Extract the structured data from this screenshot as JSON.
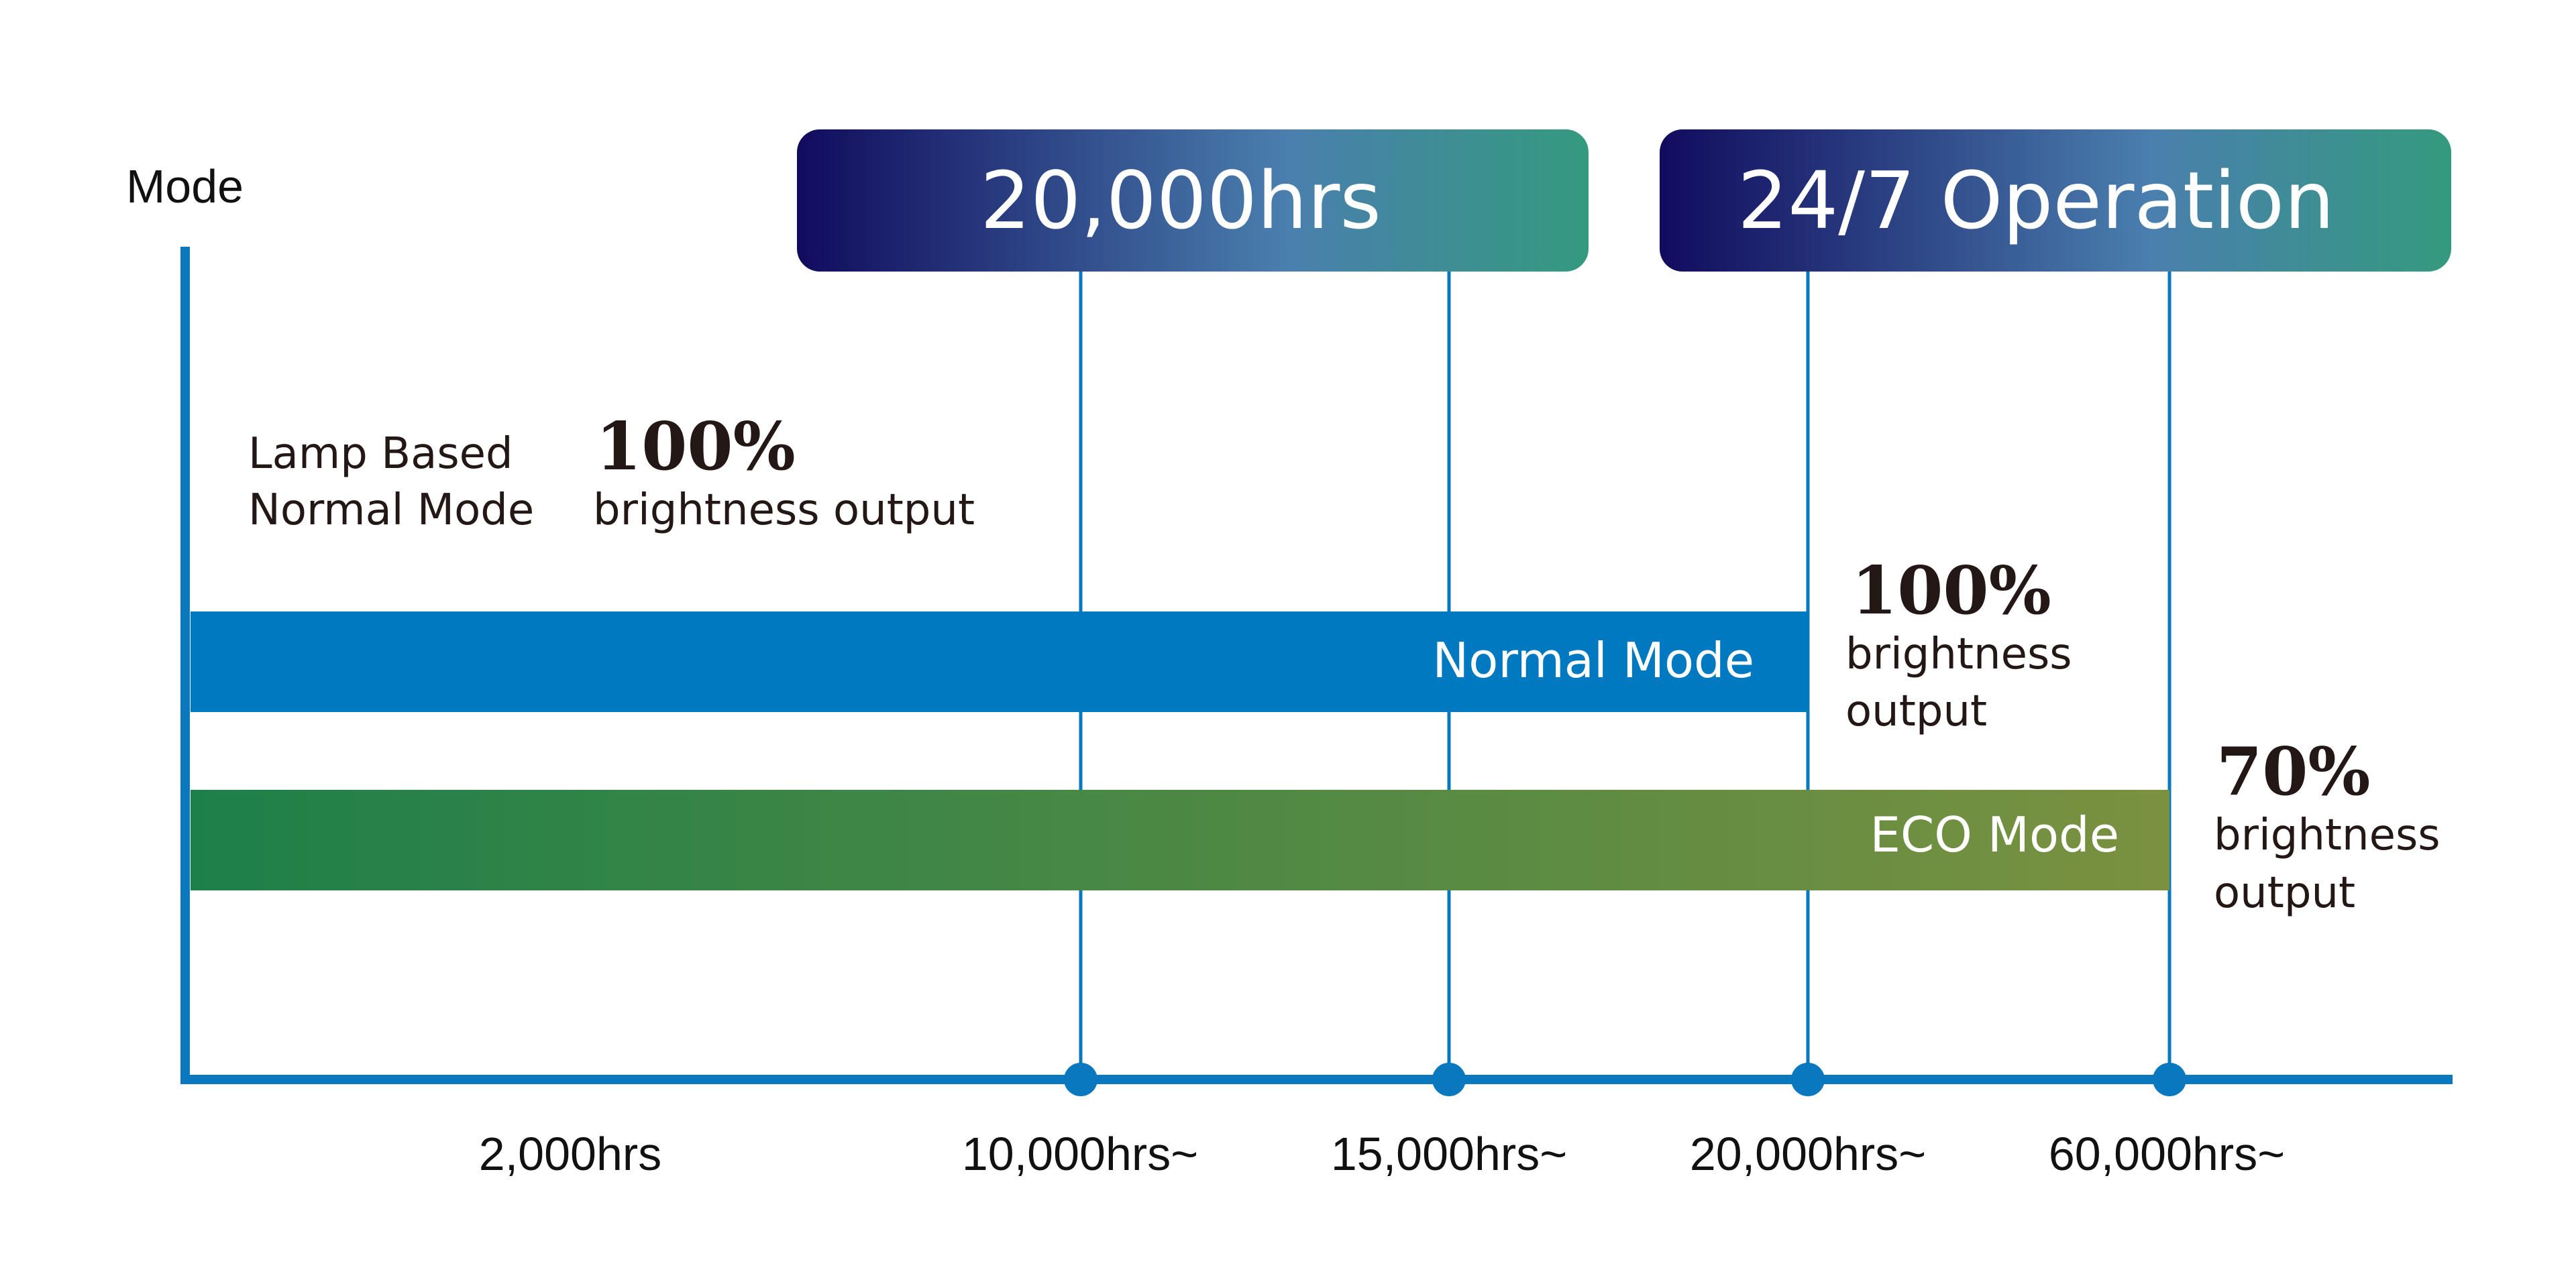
{
  "chart_data": {
    "type": "bar",
    "ylabel": "Mode",
    "x_ticks": [
      "2,000hrs",
      "10,000hrs~",
      "15,000hrs~",
      "20,000hrs~",
      "60,000hrs~"
    ],
    "banners": [
      {
        "label": "20,000hrs",
        "spans_ticks": [
          "10,000hrs~",
          "15,000hrs~"
        ]
      },
      {
        "label": "24/7 Operation",
        "spans_ticks": [
          "20,000hrs~",
          "60,000hrs~"
        ]
      }
    ],
    "lamp_note": {
      "label_line1": "Lamp Based",
      "label_line2": "Normal Mode",
      "value": "100%",
      "desc": "brightness output"
    },
    "series": [
      {
        "name": "Normal Mode",
        "ends_at": "20,000hrs~",
        "value_text": "100%",
        "desc_line1": "brightness",
        "desc_line2": "output",
        "color": "#0079C1"
      },
      {
        "name": "ECO Mode",
        "ends_at": "60,000hrs~",
        "value_text": "70%",
        "desc_line1": "brightness",
        "desc_line2": "output",
        "color_start": "#1E8049",
        "color_end": "#7A9140"
      }
    ],
    "colors": {
      "axis": "#0A78BE",
      "banner_start": "#110B5E",
      "banner_mid": "#4A7FAE",
      "banner_end": "#349A7E"
    }
  }
}
